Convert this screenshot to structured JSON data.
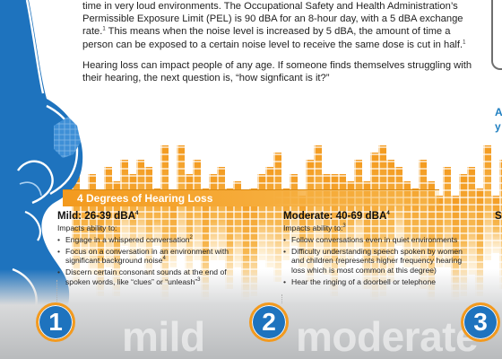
{
  "intro": {
    "p1_a": "time in very loud environments. The Occupational Safety and Health Administration’s Permissible Exposure Limit (PEL) is 90 dBA for an 8-hour day, with a 5 dBA exchange rate.",
    "p1_sup1": "1",
    "p1_b": " This means when the noise level is increased by 5 dBA, the amount of time a person can be exposed to a certain noise level to receive the same dose is cut in half.",
    "p1_sup2": "1",
    "p2": "Hearing loss can impact people of any age. If someone finds themselves struggling with their hearing, the next question is, “how signficant is it?”"
  },
  "right_fragments": {
    "a": "A",
    "y": "y"
  },
  "banner": {
    "title": "4 Degrees of Hearing Loss"
  },
  "columns": [
    {
      "title": "Mild: 26-39 dBA",
      "title_sup": "4",
      "impacts": "Impacts ability to:",
      "bullets": [
        {
          "text": "Engage in a whispered conversation",
          "sup": "2"
        },
        {
          "text": "Focus on a conversation in an environment with significant background noise",
          "sup": "4"
        },
        {
          "text": "Discern certain consonant sounds at the end of spoken words, like “clues” or “unleash”",
          "sup": "3"
        }
      ],
      "number": "1",
      "word": "mild"
    },
    {
      "title": "Moderate: 40-69 dBA",
      "title_sup": "4",
      "impacts": "Impacts ability to:",
      "impacts_sup": "3",
      "bullets": [
        {
          "text": "Follow conversations even in quiet environments",
          "sup": ""
        },
        {
          "text": "Difficulty understanding speech spoken by women and children (represents higher frequency hearing loss which is most common at this degree)",
          "sup": ""
        },
        {
          "text": "Hear the ringing of a doorbell or telephone",
          "sup": ""
        }
      ],
      "number": "2",
      "word": "moderate"
    },
    {
      "title": "S",
      "number": "3"
    }
  ],
  "colors": {
    "accent_orange": "#f39a1e",
    "ear_blue": "#1e73be",
    "eq_light": "#fbd68a"
  }
}
